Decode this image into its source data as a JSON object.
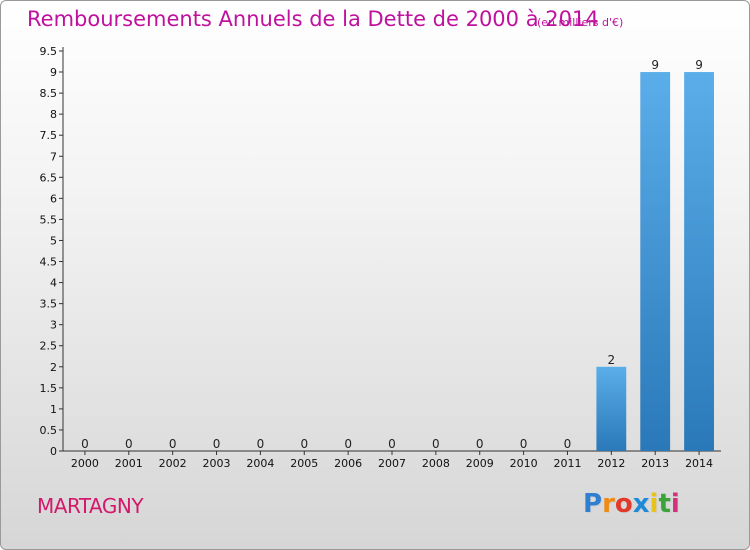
{
  "title": "Remboursements Annuels de la Dette de 2000 à 2014",
  "unit": "(en milliers d'€)",
  "commune": "MARTAGNY",
  "logo": {
    "letters": [
      "P",
      "r",
      "o",
      "x",
      "i",
      "t",
      "i"
    ],
    "colors": [
      "#2e7fd0",
      "#f08a12",
      "#e23a2a",
      "#1f8ad6",
      "#e6c21b",
      "#3aa43a",
      "#d3307e"
    ]
  },
  "chart_data": {
    "type": "bar",
    "categories": [
      "2000",
      "2001",
      "2002",
      "2003",
      "2004",
      "2005",
      "2006",
      "2007",
      "2008",
      "2009",
      "2010",
      "2011",
      "2012",
      "2013",
      "2014"
    ],
    "values": [
      0,
      0,
      0,
      0,
      0,
      0,
      0,
      0,
      0,
      0,
      0,
      0,
      2,
      9,
      9
    ],
    "data_labels": [
      "0",
      "0",
      "0",
      "0",
      "0",
      "0",
      "0",
      "0",
      "0",
      "0",
      "0",
      "0",
      "2",
      "9",
      "9"
    ],
    "ylim": [
      0,
      9.5
    ],
    "yticks": [
      "0",
      "0.5",
      "1",
      "1.5",
      "2",
      "2.5",
      "3",
      "3.5",
      "4",
      "4.5",
      "5",
      "5.5",
      "6",
      "6.5",
      "7",
      "7.5",
      "8",
      "8.5",
      "9",
      "9.5"
    ],
    "bar_color": "#3d8fd4"
  }
}
